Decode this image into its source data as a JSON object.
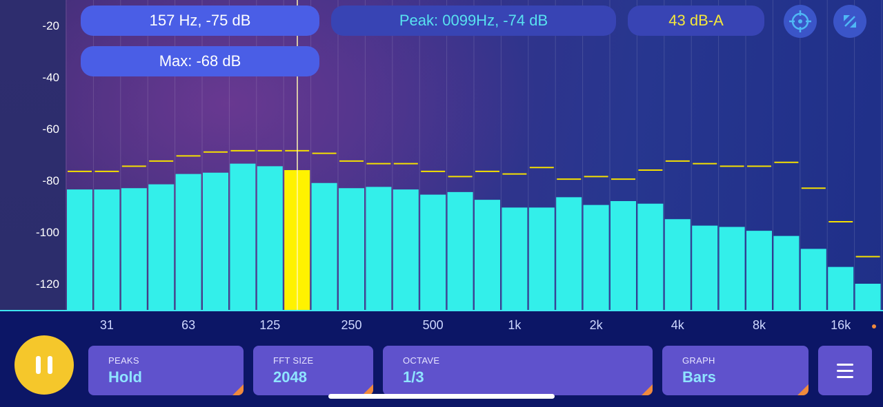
{
  "readouts": {
    "cursor": "157 Hz, -75 dB",
    "max": "Max: -68 dB",
    "peak": "Peak: 0099Hz, -74 dB",
    "weighted": "43 dB-A"
  },
  "icons": {
    "target": "crosshair-target-icon",
    "expand": "expand-arrows-icon",
    "play_pause": "pause-icon",
    "menu": "hamburger-menu-icon"
  },
  "controls": [
    {
      "caption": "PEAKS",
      "value": "Hold"
    },
    {
      "caption": "FFT SIZE",
      "value": "2048"
    },
    {
      "caption": "OCTAVE",
      "value": "1/3"
    },
    {
      "caption": "GRAPH",
      "value": "Bars"
    }
  ],
  "colors": {
    "bar": "#33efea",
    "selected_bar": "#fff200",
    "peak_marker": "#f5e000",
    "cursor_line": "#fff7b0"
  },
  "chart_data": {
    "type": "bar",
    "ylim": [
      -130,
      -10
    ],
    "y_ticks": [
      -20,
      -40,
      -60,
      -80,
      -100,
      -120
    ],
    "x_tick_labels": [
      "31",
      "63",
      "125",
      "250",
      "500",
      "1k",
      "2k",
      "4k",
      "8k",
      "16k"
    ],
    "selected_index": 8,
    "values": [
      -83.5,
      -83.5,
      -83,
      -81.5,
      -77.5,
      -77,
      -73.5,
      -74.5,
      -76,
      -81,
      -83,
      -82.5,
      -83.5,
      -85.5,
      -84.5,
      -87.5,
      -90.5,
      -90.5,
      -86.5,
      -89.5,
      -88,
      -89,
      -95,
      -97.5,
      -98,
      -99.5,
      -101.5,
      -106.5,
      -113.5,
      -120
    ],
    "peaks": [
      -76.5,
      -76.5,
      -74.5,
      -72.5,
      -70.5,
      -69,
      -68.5,
      -68.5,
      -68.5,
      -69.5,
      -72.5,
      -73.5,
      -73.5,
      -76.5,
      -78.5,
      -76.5,
      -77.5,
      -75,
      -79.5,
      -78.5,
      -79.5,
      -76,
      -72.5,
      -73.5,
      -74.5,
      -74.5,
      -73,
      -83,
      -96,
      -109.5
    ]
  }
}
